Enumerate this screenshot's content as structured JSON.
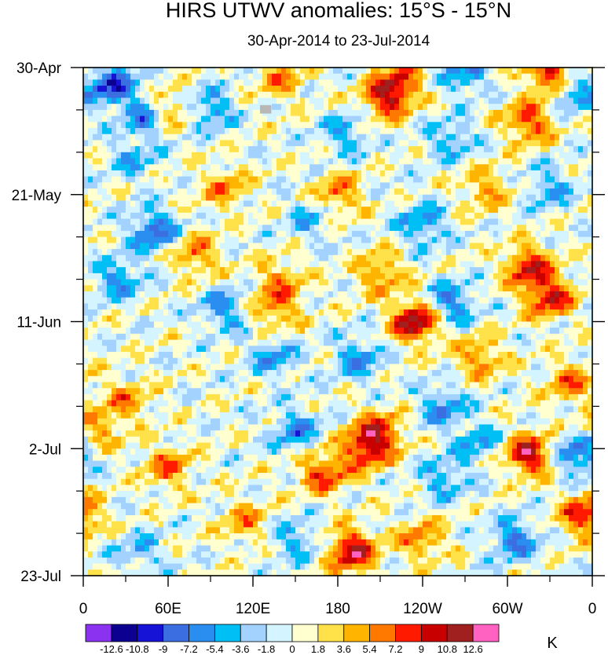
{
  "chart_data": {
    "type": "heatmap",
    "title": "HIRS UTWV anomalies: 15°S - 15°N",
    "subtitle": "30-Apr-2014 to 23-Jul-2014",
    "x_tick_labels": [
      "0",
      "60E",
      "120E",
      "180",
      "120W",
      "60W",
      "0"
    ],
    "x_tick_longitudes": [
      0,
      60,
      120,
      180,
      240,
      300,
      360
    ],
    "x_range": [
      0,
      360
    ],
    "y_tick_labels": [
      "30-Apr",
      "21-May",
      "11-Jun",
      "2-Jul",
      "23-Jul"
    ],
    "y_tick_days": [
      0,
      21,
      42,
      63,
      84
    ],
    "y_minor_step_days": 7,
    "y_range_days": [
      0,
      84
    ],
    "colorbar": {
      "levels": [
        "-12.6",
        "-10.8",
        "-9",
        "-7.2",
        "-5.4",
        "-3.6",
        "-1.8",
        "0",
        "1.8",
        "3.6",
        "5.4",
        "7.2",
        "9",
        "10.8",
        "12.6"
      ],
      "colors": [
        "#8b32f0",
        "#0c0090",
        "#1612d6",
        "#3b6ee0",
        "#2a8ef0",
        "#00bff5",
        "#a4d2ff",
        "#d4f4ff",
        "#ffffd0",
        "#ffe24a",
        "#ffb400",
        "#ff7800",
        "#ff1a00",
        "#c80000",
        "#a02020",
        "#ff62c0"
      ],
      "unit": "K"
    },
    "anomaly_features": [
      {
        "lon": 20,
        "day": 3,
        "value": -9
      },
      {
        "lon": 45,
        "day": 8,
        "value": -7
      },
      {
        "lon": 60,
        "day": 7,
        "value": 6
      },
      {
        "lon": 90,
        "day": 7,
        "value": -6
      },
      {
        "lon": 140,
        "day": 2,
        "value": 5
      },
      {
        "lon": 215,
        "day": 5,
        "value": 9
      },
      {
        "lon": 225,
        "day": 2,
        "value": 6
      },
      {
        "lon": 270,
        "day": 1,
        "value": -6
      },
      {
        "lon": 330,
        "day": 1,
        "value": 10
      },
      {
        "lon": 345,
        "day": 4,
        "value": -6
      },
      {
        "lon": 315,
        "day": 9,
        "value": 8
      },
      {
        "lon": 260,
        "day": 12,
        "value": -5
      },
      {
        "lon": 185,
        "day": 11,
        "value": -5
      },
      {
        "lon": 35,
        "day": 15,
        "value": -4
      },
      {
        "lon": 100,
        "day": 20,
        "value": 5
      },
      {
        "lon": 180,
        "day": 21,
        "value": 6
      },
      {
        "lon": 50,
        "day": 27,
        "value": -8
      },
      {
        "lon": 25,
        "day": 35,
        "value": -6
      },
      {
        "lon": 80,
        "day": 31,
        "value": 6
      },
      {
        "lon": 140,
        "day": 35,
        "value": 5
      },
      {
        "lon": 240,
        "day": 26,
        "value": -6
      },
      {
        "lon": 315,
        "day": 33,
        "value": 9
      },
      {
        "lon": 330,
        "day": 38,
        "value": 9
      },
      {
        "lon": 235,
        "day": 42,
        "value": 12
      },
      {
        "lon": 210,
        "day": 34,
        "value": 6
      },
      {
        "lon": 260,
        "day": 39,
        "value": -7
      },
      {
        "lon": 100,
        "day": 40,
        "value": -6
      },
      {
        "lon": 135,
        "day": 40,
        "value": 6
      },
      {
        "lon": 195,
        "day": 48,
        "value": -6
      },
      {
        "lon": 280,
        "day": 48,
        "value": 6
      },
      {
        "lon": 345,
        "day": 52,
        "value": 6
      },
      {
        "lon": 30,
        "day": 55,
        "value": 5
      },
      {
        "lon": 135,
        "day": 48,
        "value": -5
      },
      {
        "lon": 255,
        "day": 56,
        "value": -6
      },
      {
        "lon": 200,
        "day": 63,
        "value": 9
      },
      {
        "lon": 210,
        "day": 60,
        "value": 7
      },
      {
        "lon": 170,
        "day": 67,
        "value": 8
      },
      {
        "lon": 150,
        "day": 60,
        "value": -6
      },
      {
        "lon": 60,
        "day": 66,
        "value": 6
      },
      {
        "lon": 280,
        "day": 62,
        "value": -5
      },
      {
        "lon": 315,
        "day": 64,
        "value": 11
      },
      {
        "lon": 350,
        "day": 64,
        "value": -8
      },
      {
        "lon": 255,
        "day": 68,
        "value": -5
      },
      {
        "lon": 115,
        "day": 75,
        "value": 5
      },
      {
        "lon": 190,
        "day": 80,
        "value": 11
      },
      {
        "lon": 150,
        "day": 78,
        "value": -5
      },
      {
        "lon": 305,
        "day": 78,
        "value": -7
      },
      {
        "lon": 355,
        "day": 74,
        "value": 9
      },
      {
        "lon": 40,
        "day": 80,
        "value": -4
      },
      {
        "lon": 240,
        "day": 78,
        "value": 6
      },
      {
        "lon": 330,
        "day": 20,
        "value": -5
      },
      {
        "lon": 10,
        "day": 60,
        "value": 5
      },
      {
        "lon": 160,
        "day": 25,
        "value": -4
      },
      {
        "lon": 285,
        "day": 20,
        "value": 5
      }
    ]
  }
}
